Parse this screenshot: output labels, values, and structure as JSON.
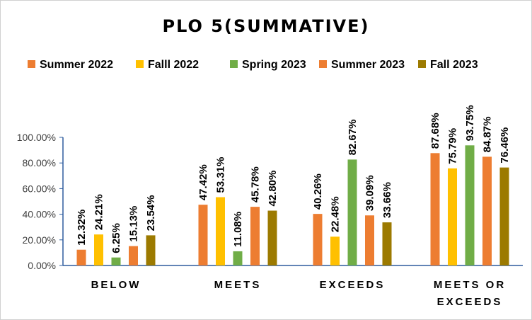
{
  "chart_data": {
    "type": "bar",
    "title": "PLO 5(SUMMATIVE)",
    "categories": [
      [
        "BELOW"
      ],
      [
        "MEETS"
      ],
      [
        "EXCEEDS"
      ],
      [
        "MEETS OR",
        "EXCEEDS"
      ]
    ],
    "series": [
      {
        "name": "Summer 2022",
        "color": "#ED7D31",
        "values": [
          12.32,
          47.42,
          40.26,
          87.68
        ]
      },
      {
        "name": "Falll 2022",
        "color": "#FFC000",
        "values": [
          24.21,
          53.31,
          22.48,
          75.79
        ]
      },
      {
        "name": "Spring 2023",
        "color": "#70AD47",
        "values": [
          6.25,
          11.08,
          82.67,
          93.75
        ]
      },
      {
        "name": "Summer 2023",
        "color": "#ED7D31",
        "values": [
          15.13,
          45.78,
          39.09,
          84.87
        ]
      },
      {
        "name": "Fall 2023",
        "color": "#9C7A00",
        "values": [
          23.54,
          42.8,
          33.66,
          76.46
        ]
      }
    ],
    "value_suffix": "%",
    "ylim": [
      0,
      100
    ],
    "yticks": [
      "0.00%",
      "20.00%",
      "40.00%",
      "60.00%",
      "80.00%",
      "100.00%"
    ],
    "legend_position": "top",
    "grid": false
  }
}
